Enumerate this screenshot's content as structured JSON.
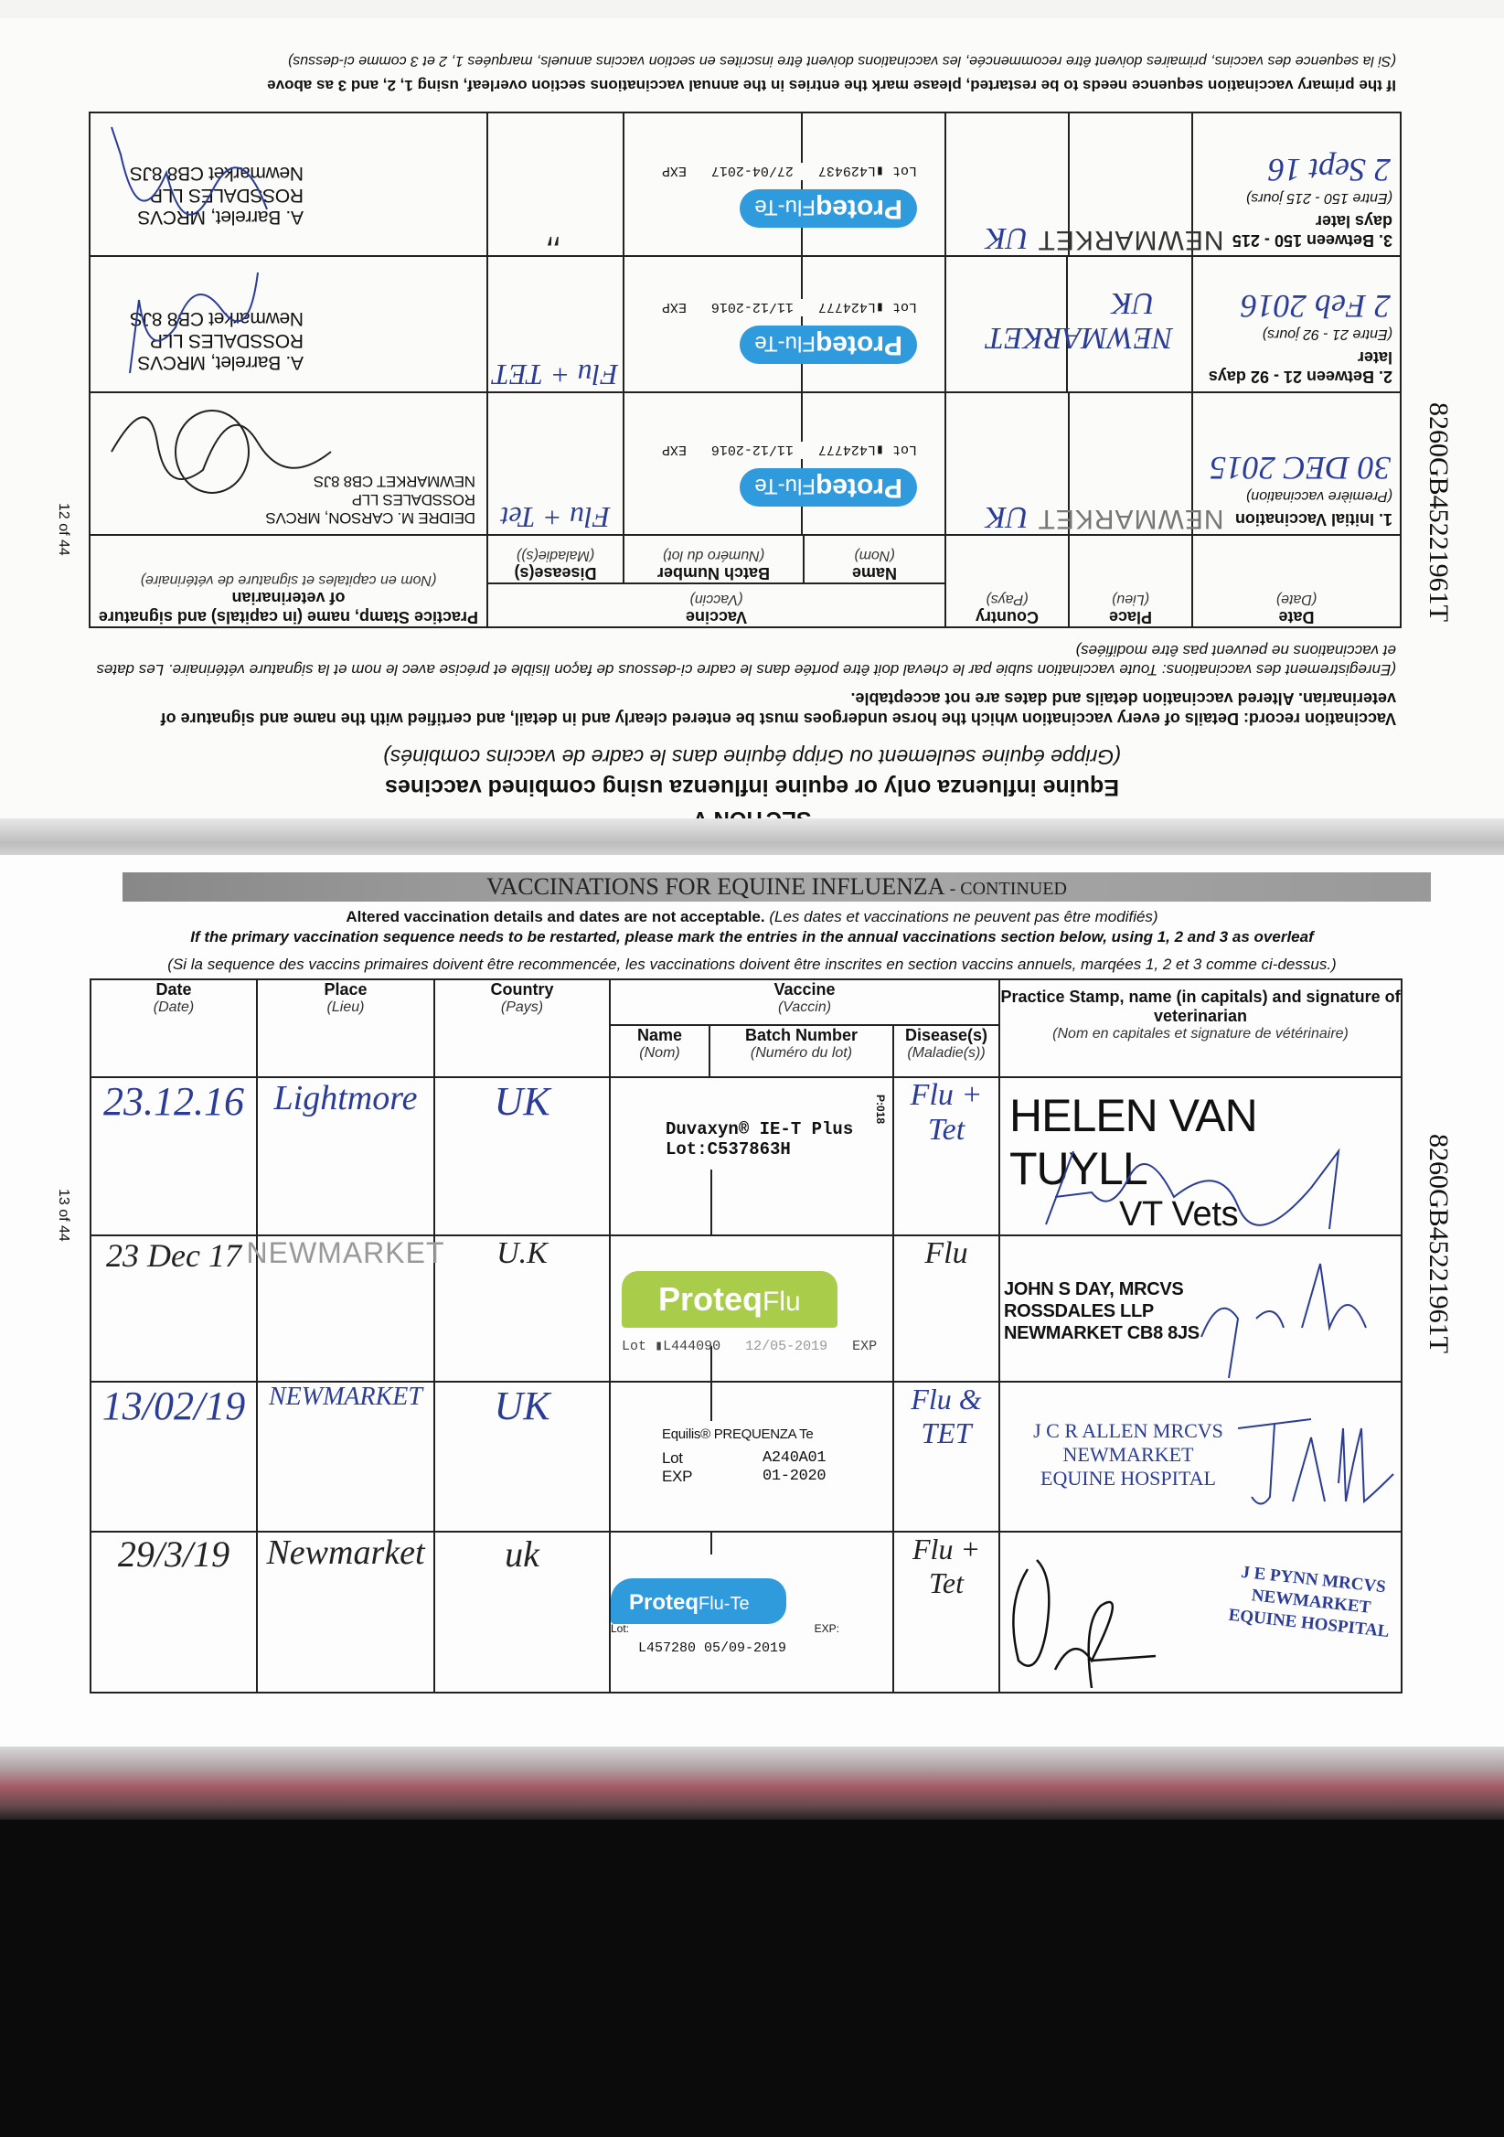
{
  "colors": {
    "ink_blue": "#2b3c96",
    "proteq_blue": "#2f9bdc",
    "proteq_green": "#a9cc4a",
    "banner_grey": "#9a9a9a"
  },
  "side_code": "8260GB45221961T",
  "top_page": {
    "page_number": "12 of 44",
    "section": "SECTION V",
    "heading": "Equine influenza only or equine influenza using combined vaccines",
    "heading_fr": "(Grippe équine seulement ou Gripp équine dans le cadre de vaccins combinés)",
    "record_en": "Vaccination record: Details of every vaccination which the horse undergoes must be entered clearly and in detail, and certified with the name and signature of veterinarian. Altered vaccination details and dates are not acceptable.",
    "record_fr": "(Enregistrement des vaccinations: Toute vaccination subie par le cheval doit être portée dans le cadre ci-dessous de façon lisible et précise avec le nom et la signature vétérinaire. Les dates et vaccinations ne peuvent pas être modifiées)",
    "restart_en": "If the primary vaccination sequence needs to be restarted, please mark the entries in the annual vaccinations section overleaf, using 1, 2, and 3 as above",
    "restart_fr": "(Si la sequence des vaccins, primaires doivent être recommencée, les vaccinations doivent être inscrites en section vaccins annuels, marquées 1, 2 et 3 comme ci-dessus)",
    "headers": {
      "date": "Date",
      "date_fr": "(Date)",
      "place": "Place",
      "place_fr": "(Lieu)",
      "country": "Country",
      "country_fr": "(Pays)",
      "vaccine": "Vaccine",
      "vaccine_fr": "(Vaccin)",
      "name": "Name",
      "name_fr": "(Nom)",
      "batch": "Batch Number",
      "batch_fr": "(Numéro du lot)",
      "disease": "Disease(s)",
      "disease_fr": "(Maladie(s))",
      "practice": "Practice Stamp, name (in capitals) and signature of veterinarian",
      "practice_fr": "(Nom en capitales et signature de vétérinaire)"
    },
    "rows": [
      {
        "label": "1. Initial Vaccination",
        "label_fr": "(Première vaccination)",
        "date": "30 DEC 2015",
        "place": "NEWMARKET",
        "country": "UK",
        "vaccine": "Proteq",
        "vaccine_suffix": "Flu-Te",
        "lot_prefix": "Lot",
        "lot": "L424777",
        "exp_date": "11/12-2016",
        "exp": "EXP",
        "disease": "Flu + Tet",
        "stamp": [
          "DEIDRE M. CARSON, MRCVS",
          "ROSSDALES LLP",
          "NEWMARKET CB8 8JS"
        ]
      },
      {
        "label": "2. Between 21 - 92 days later",
        "label_fr": "(Entre 21 - 92 jours)",
        "date": "2 Feb 2016",
        "place": "NEWMARKET",
        "country": "UK",
        "vaccine": "Proteq",
        "vaccine_suffix": "Flu-Te",
        "lot_prefix": "Lot",
        "lot": "L424777",
        "exp_date": "11/12-2016",
        "exp": "EXP",
        "disease": "Flu + TET",
        "stamp": [
          "A. Barrelet, MRCVS",
          "ROSSDALES LLP",
          "Newmarket CB8 8JS"
        ]
      },
      {
        "label": "3. Between 150 - 215 days later",
        "label_fr": "(Entre 150 - 215 jours)",
        "date": "2 Sept 16",
        "place": "NEWMARKET",
        "country": "UK",
        "vaccine": "Proteq",
        "vaccine_suffix": "Flu-Te",
        "lot_prefix": "Lot",
        "lot": "L429437",
        "exp_date": "27/04-2017",
        "exp": "EXP",
        "disease": "\"",
        "stamp": [
          "A. Barrelet, MRCVS",
          "ROSSDALES LLP",
          "Newmarket CB8 8JS"
        ]
      }
    ]
  },
  "bottom_page": {
    "page_number": "13 of 44",
    "banner": "VACCINATIONS FOR EQUINE INFLUENZA",
    "banner_suffix": "- CONTINUED",
    "altered_en": "Altered vaccination details and dates are not acceptable.",
    "altered_fr": "(Les dates et vaccinations ne peuvent pas être modifiés)",
    "restart_en": "If the primary vaccination sequence needs to be restarted, please mark the entries in the annual vaccinations section below, using 1, 2 and 3 as overleaf",
    "restart_fr": "(Si la sequence des vaccins primaires doivent être recommencée, les vaccinations doivent être inscrites en section vaccins annuels, marqées 1, 2 et 3 comme ci-dessus.)",
    "headers": {
      "date": "Date",
      "date_fr": "(Date)",
      "place": "Place",
      "place_fr": "(Lieu)",
      "country": "Country",
      "country_fr": "(Pays)",
      "vaccine": "Vaccine",
      "vaccine_fr": "(Vaccin)",
      "name": "Name",
      "name_fr": "(Nom)",
      "batch": "Batch Number",
      "batch_fr": "(Numéro du lot)",
      "disease": "Disease(s)",
      "disease_fr": "(Maladie(s))",
      "practice": "Practice Stamp, name (in capitals) and signature of veterinarian",
      "practice_fr": "(Nom en capitales et signature de vétérinaire)"
    },
    "rows": [
      {
        "date": "23.12.16",
        "place": "Lightmore",
        "country": "UK",
        "vaccine": "Duvaxyn® IE-T Plus",
        "lot": "Lot:C537863H",
        "side": "P:018",
        "disease": "Flu + Tet",
        "stamp": [
          "HELEN VAN TUYLL",
          "VT Vets"
        ]
      },
      {
        "date": "23 Dec 17",
        "place": "NEWMARKET",
        "country": "U.K",
        "vaccine": "Proteq",
        "vaccine_suffix": "Flu",
        "lot_prefix": "Lot",
        "lot": "L444090",
        "exp_date": "12/05-2019",
        "exp": "EXP",
        "disease": "Flu",
        "stamp": [
          "JOHN S DAY, MRCVS",
          "ROSSDALES LLP",
          "NEWMARKET CB8 8JS"
        ]
      },
      {
        "date": "13/02/19",
        "place": "NEWMARKET",
        "country": "UK",
        "vaccine": "Equilis® PREQUENZA Te",
        "lot_label": "Lot",
        "lot": "A240A01",
        "exp_label": "EXP",
        "exp_date": "01-2020",
        "disease": "Flu & TET",
        "stamp": [
          "J C R ALLEN MRCVS",
          "NEWMARKET",
          "EQUINE HOSPITAL"
        ]
      },
      {
        "date": "29/3/19",
        "place": "Newmarket",
        "country": "uk",
        "vaccine": "Proteq",
        "vaccine_suffix": "Flu-Te",
        "lot_label": "Lot:",
        "exp_label": "EXP:",
        "lot": "L457280",
        "exp_date": "05/09-2019",
        "disease": "Flu + Tet",
        "stamp": [
          "J E PYNN MRCVS",
          "NEWMARKET",
          "EQUINE HOSPITAL"
        ]
      }
    ]
  }
}
